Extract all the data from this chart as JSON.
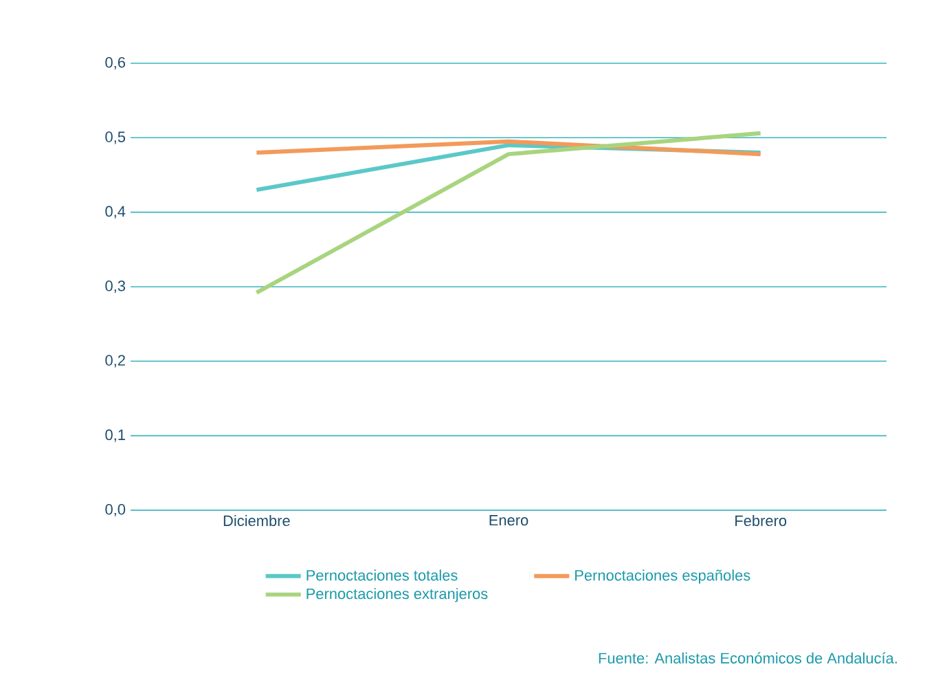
{
  "chart_data": {
    "type": "line",
    "categories": [
      "Diciembre",
      "Enero",
      "Febrero"
    ],
    "series": [
      {
        "name": "Pernoctaciones totales",
        "color": "#5bc8c8",
        "values": [
          0.43,
          0.49,
          0.48
        ]
      },
      {
        "name": "Pernoctaciones españoles",
        "color": "#f39a5a",
        "values": [
          0.48,
          0.495,
          0.478
        ]
      },
      {
        "name": "Pernoctaciones extranjeros",
        "color": "#a9d47f",
        "values": [
          0.292,
          0.478,
          0.506
        ]
      }
    ],
    "ylim": [
      0,
      0.6
    ],
    "yticks": [
      {
        "value": 0,
        "label": "0,0"
      },
      {
        "value": 0.1,
        "label": "0,1"
      },
      {
        "value": 0.2,
        "label": "0,2"
      },
      {
        "value": 0.3,
        "label": "0,3"
      },
      {
        "value": 0.4,
        "label": "0,4"
      },
      {
        "value": 0.5,
        "label": "0,5"
      },
      {
        "value": 0.6,
        "label": "0,6"
      }
    ],
    "grid": "y",
    "legend": "bottom",
    "marker": "none",
    "line_style": "solid",
    "annotations": [
      "Fuente: Analistas Económicos de Andalucía."
    ]
  }
}
